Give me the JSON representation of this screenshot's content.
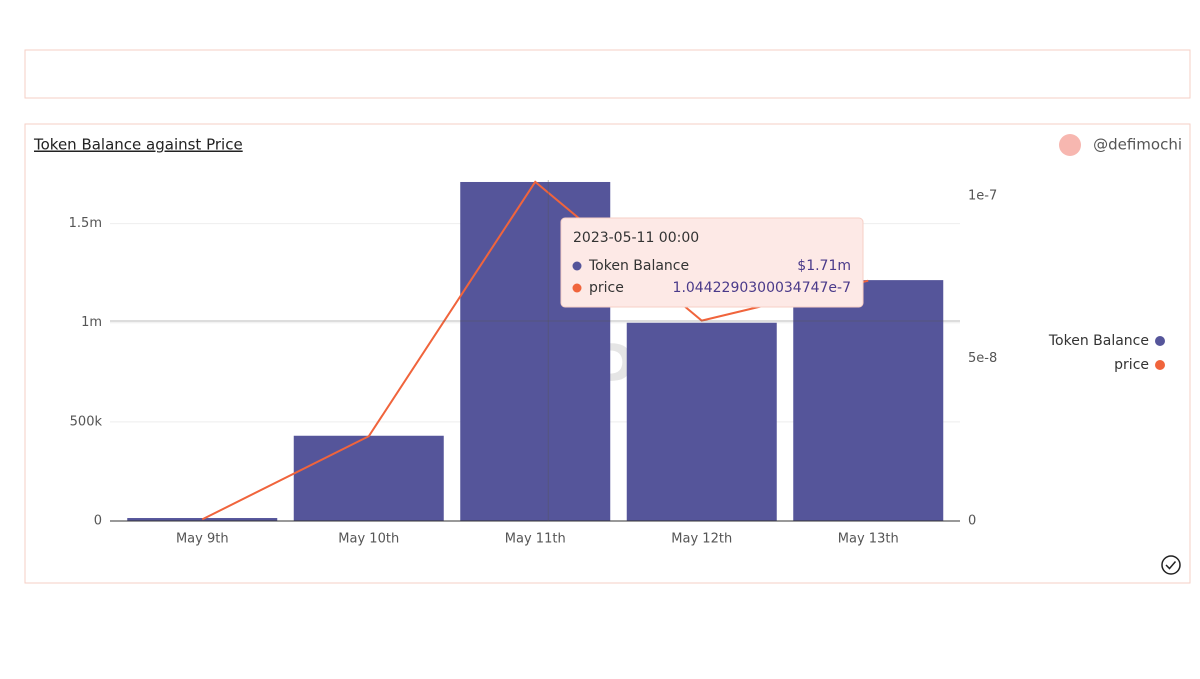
{
  "chart_data": {
    "type": "bar",
    "title": "Token Balance against Price",
    "author": "@defimochi",
    "watermark": "Dune",
    "categories": [
      "May 9th",
      "May 10th",
      "May 11th",
      "May 12th",
      "May 13th"
    ],
    "series": [
      {
        "name": "Token Balance",
        "type": "bar",
        "color": "#55559a",
        "values": [
          15000,
          430000,
          1710000,
          1000000,
          1215000
        ]
      },
      {
        "name": "price",
        "type": "line",
        "axis": "y2",
        "color": "#f0643c",
        "values": [
          5e-10,
          2.61e-08,
          1.0442290300034747e-07,
          6.17e-08,
          7.4e-08
        ]
      }
    ],
    "ylim": [
      0,
      1720000
    ],
    "yticks": [
      0,
      {
        "value": 500000,
        "label": "500k"
      },
      {
        "value": 1000000,
        "label": "1m"
      },
      {
        "value": 1500000,
        "label": "1.5m"
      }
    ],
    "y2lim": [
      0,
      1.05e-07
    ],
    "y2ticks": [
      0,
      5e-08,
      1e-07
    ],
    "grid": true,
    "legend": "right",
    "tooltip": {
      "title": "2023-05-11 00:00",
      "index": 2,
      "value_labels": [
        "$1.71m",
        "1.0442290300034747e-7"
      ]
    }
  }
}
